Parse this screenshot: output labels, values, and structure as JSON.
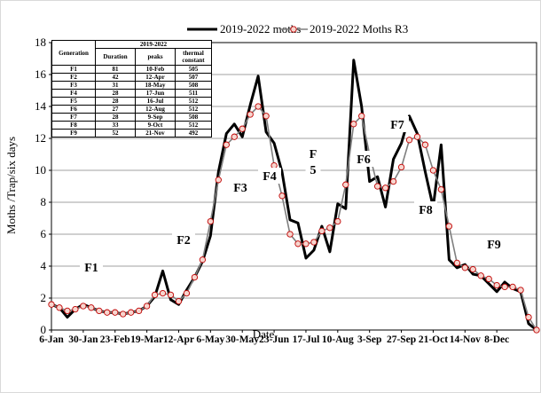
{
  "chart_data": {
    "type": "line",
    "ylabel": "Moths /Trap/six days",
    "xlabel": "Date",
    "ylim": [
      0,
      18
    ],
    "yticks": [
      0,
      2,
      4,
      6,
      8,
      10,
      12,
      14,
      16,
      18
    ],
    "xtick_labels": [
      "6-Jan",
      "30-Jan",
      "23-Feb",
      "19-Mar",
      "12-Apr",
      "6-May",
      "30-May",
      "23-Jun",
      "17-Jul",
      "10-Aug",
      "3-Sep",
      "27-Sep",
      "21-Oct",
      "14-Nov",
      "8-Dec"
    ],
    "grid": "horizontal",
    "legend_position": "top",
    "series": [
      {
        "name": "2019-2022 moths",
        "color": "#000000",
        "marker": "none",
        "values": [
          1.6,
          1.4,
          0.8,
          1.3,
          1.6,
          1.4,
          1.2,
          1.1,
          1.1,
          1.0,
          1.1,
          1.2,
          1.5,
          2.1,
          3.7,
          1.9,
          1.6,
          2.5,
          3.3,
          4.3,
          5.9,
          9.9,
          12.3,
          12.9,
          12.1,
          14.1,
          15.9,
          12.4,
          11.7,
          9.9,
          6.9,
          6.7,
          4.5,
          5.0,
          6.5,
          4.9,
          7.9,
          7.6,
          16.9,
          14.0,
          9.3,
          9.6,
          7.7,
          10.7,
          11.7,
          13.4,
          12.3,
          9.9,
          7.7,
          11.6,
          4.4,
          3.9,
          4.1,
          3.5,
          3.4,
          2.9,
          2.4,
          3.0,
          2.6,
          2.4,
          0.4,
          0.0
        ]
      },
      {
        "name": "2019-2022 Moths R3",
        "color": "#c00000",
        "marker": "circle",
        "values": [
          1.6,
          1.4,
          1.2,
          1.3,
          1.5,
          1.4,
          1.2,
          1.1,
          1.1,
          1.0,
          1.1,
          1.2,
          1.5,
          2.2,
          2.3,
          2.2,
          1.8,
          2.3,
          3.3,
          4.4,
          6.8,
          9.4,
          11.6,
          12.1,
          12.6,
          13.5,
          14.0,
          13.4,
          10.3,
          8.4,
          6.0,
          5.4,
          5.4,
          5.5,
          6.2,
          6.4,
          6.8,
          9.1,
          12.9,
          13.4,
          11.0,
          9.0,
          8.9,
          9.3,
          10.2,
          11.9,
          12.1,
          11.6,
          10.0,
          8.8,
          6.5,
          4.2,
          3.9,
          3.8,
          3.4,
          3.2,
          2.8,
          2.7,
          2.7,
          2.5,
          0.8,
          0.0
        ]
      }
    ],
    "annotations": [
      "F1",
      "F2",
      "F3",
      "F4",
      "F",
      "5",
      "F6",
      "F7",
      "F8",
      "F9"
    ],
    "table": {
      "header_group": "2019-2022",
      "columns": [
        "Generation",
        "Duration",
        "peaks",
        "thermal constant"
      ],
      "rows": [
        [
          "F1",
          "81",
          "10-Feb",
          "505"
        ],
        [
          "F2",
          "42",
          "12-Apr",
          "507"
        ],
        [
          "F3",
          "31",
          "18-May",
          "508"
        ],
        [
          "F4",
          "28",
          "17-Jun",
          "511"
        ],
        [
          "F5",
          "28",
          "16-Jul",
          "512"
        ],
        [
          "F6",
          "27",
          "12-Aug",
          "512"
        ],
        [
          "F7",
          "28",
          "9-Sep",
          "508"
        ],
        [
          "F8",
          "33",
          "9-Oct",
          "512"
        ],
        [
          "F9",
          "52",
          "21-Nov",
          "492"
        ]
      ]
    }
  }
}
